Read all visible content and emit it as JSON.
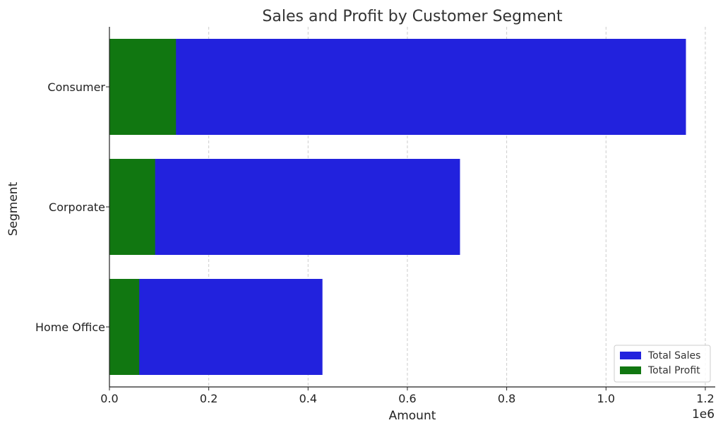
{
  "chart_data": {
    "type": "bar",
    "orientation": "horizontal",
    "stacking": "overlay",
    "title": "Sales and Profit by Customer Segment",
    "xlabel": "Amount",
    "ylabel": "Segment",
    "x_scale_label": "1e6",
    "xlim": [
      0,
      1.22
    ],
    "x_ticks": [
      0.0,
      0.2,
      0.4,
      0.6,
      0.8,
      1.0,
      1.2
    ],
    "x_tick_labels": [
      "0.0",
      "0.2",
      "0.4",
      "0.6",
      "0.8",
      "1.0",
      "1.2"
    ],
    "categories": [
      "Consumer",
      "Corporate",
      "Home Office"
    ],
    "series": [
      {
        "name": "Total Sales",
        "color": "#2222dd",
        "values": [
          1.161,
          0.706,
          0.429
        ]
      },
      {
        "name": "Total Profit",
        "color": "#117711",
        "values": [
          0.134,
          0.092,
          0.06
        ]
      }
    ],
    "grid": {
      "x": true,
      "style": "dashed"
    },
    "legend": {
      "position": "bottom-right"
    }
  }
}
